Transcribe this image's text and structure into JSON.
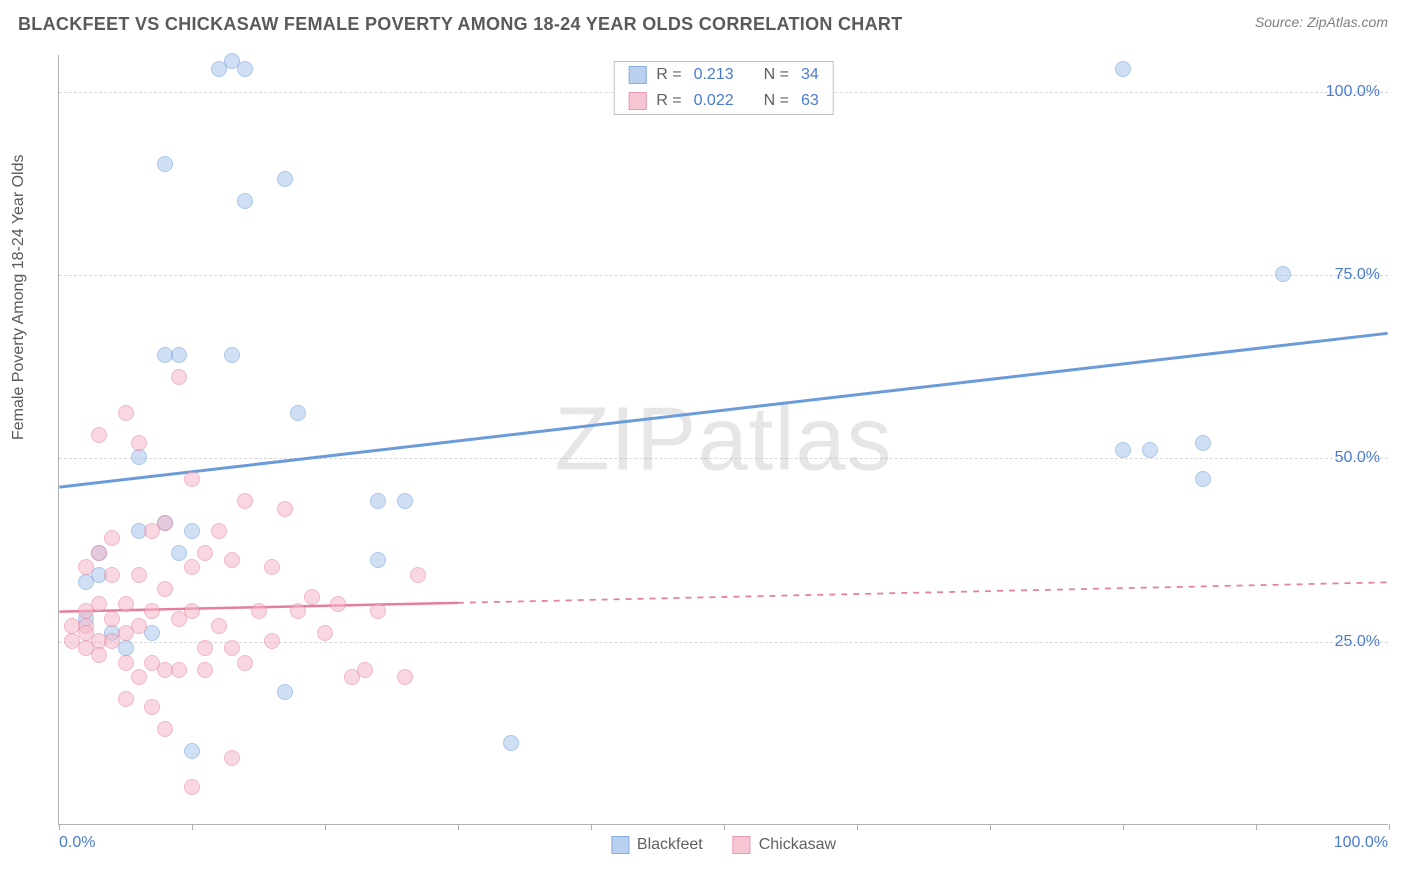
{
  "header": {
    "title": "BLACKFEET VS CHICKASAW FEMALE POVERTY AMONG 18-24 YEAR OLDS CORRELATION CHART",
    "source": "Source: ZipAtlas.com"
  },
  "chart": {
    "type": "scatter",
    "watermark": "ZIPatlas",
    "ylabel": "Female Poverty Among 18-24 Year Olds",
    "xlim": [
      0,
      100
    ],
    "ylim": [
      0,
      105
    ],
    "yticks": [
      25,
      50,
      75,
      100
    ],
    "ytick_labels": [
      "25.0%",
      "50.0%",
      "75.0%",
      "100.0%"
    ],
    "xticks": [
      0,
      10,
      20,
      30,
      40,
      50,
      60,
      70,
      80,
      90,
      100
    ],
    "xtick_label_left": "0.0%",
    "xtick_label_right": "100.0%",
    "background_color": "#ffffff",
    "grid_color": "#d8d8d8",
    "marker_radius": 8,
    "marker_stroke_width": 1.5,
    "series": [
      {
        "name": "Blackfeet",
        "fill_color": "#a8c5ec",
        "stroke_color": "#6b9bd8",
        "fill_opacity": 0.55,
        "R": "0.213",
        "N": "34",
        "trend": {
          "y_at_x0": 46,
          "y_at_x100": 67,
          "line_width": 3,
          "dash_from_x": null
        },
        "points": [
          [
            12,
            103
          ],
          [
            14,
            103
          ],
          [
            17,
            88
          ],
          [
            8,
            90
          ],
          [
            14,
            85
          ],
          [
            13,
            104
          ],
          [
            8,
            64
          ],
          [
            9,
            64
          ],
          [
            13,
            64
          ],
          [
            6,
            50
          ],
          [
            18,
            56
          ],
          [
            3,
            37
          ],
          [
            2,
            28
          ],
          [
            2,
            33
          ],
          [
            6,
            40
          ],
          [
            10,
            40
          ],
          [
            9,
            37
          ],
          [
            24,
            44
          ],
          [
            26,
            44
          ],
          [
            24,
            36
          ],
          [
            17,
            18
          ],
          [
            10,
            10
          ],
          [
            34,
            11
          ],
          [
            80,
            103
          ],
          [
            92,
            75
          ],
          [
            80,
            51
          ],
          [
            82,
            51
          ],
          [
            86,
            52
          ],
          [
            86,
            47
          ],
          [
            4,
            26
          ],
          [
            5,
            24
          ],
          [
            7,
            26
          ],
          [
            3,
            34
          ],
          [
            8,
            41
          ]
        ]
      },
      {
        "name": "Chickasaw",
        "fill_color": "#f4b8c8",
        "stroke_color": "#e57f9e",
        "fill_opacity": 0.55,
        "R": "0.022",
        "N": "63",
        "trend": {
          "y_at_x0": 29,
          "y_at_x100": 33,
          "line_width": 2.5,
          "dash_from_x": 30
        },
        "points": [
          [
            9,
            61
          ],
          [
            14,
            44
          ],
          [
            17,
            43
          ],
          [
            5,
            56
          ],
          [
            6,
            52
          ],
          [
            10,
            47
          ],
          [
            3,
            53
          ],
          [
            8,
            41
          ],
          [
            7,
            40
          ],
          [
            12,
            40
          ],
          [
            10,
            35
          ],
          [
            11,
            37
          ],
          [
            13,
            36
          ],
          [
            16,
            35
          ],
          [
            4,
            34
          ],
          [
            6,
            34
          ],
          [
            8,
            32
          ],
          [
            3,
            30
          ],
          [
            5,
            30
          ],
          [
            2,
            29
          ],
          [
            2,
            27
          ],
          [
            1,
            27
          ],
          [
            1,
            25
          ],
          [
            2,
            26
          ],
          [
            3,
            25
          ],
          [
            4,
            25
          ],
          [
            2,
            24
          ],
          [
            3,
            23
          ],
          [
            5,
            22
          ],
          [
            7,
            22
          ],
          [
            8,
            21
          ],
          [
            6,
            20
          ],
          [
            9,
            21
          ],
          [
            11,
            21
          ],
          [
            5,
            17
          ],
          [
            7,
            16
          ],
          [
            8,
            13
          ],
          [
            13,
            9
          ],
          [
            10,
            5
          ],
          [
            14,
            22
          ],
          [
            18,
            29
          ],
          [
            19,
            31
          ],
          [
            20,
            26
          ],
          [
            21,
            30
          ],
          [
            22,
            20
          ],
          [
            23,
            21
          ],
          [
            24,
            29
          ],
          [
            26,
            20
          ],
          [
            27,
            34
          ],
          [
            15,
            29
          ],
          [
            16,
            25
          ],
          [
            3,
            37
          ],
          [
            4,
            39
          ],
          [
            2,
            35
          ],
          [
            12,
            27
          ],
          [
            11,
            24
          ],
          [
            13,
            24
          ],
          [
            9,
            28
          ],
          [
            10,
            29
          ],
          [
            6,
            27
          ],
          [
            7,
            29
          ],
          [
            5,
            26
          ],
          [
            4,
            28
          ]
        ]
      }
    ],
    "legend_top": {
      "R_label": "R =",
      "N_label": "N ="
    },
    "legend_bottom": {
      "items": [
        "Blackfeet",
        "Chickasaw"
      ]
    }
  }
}
